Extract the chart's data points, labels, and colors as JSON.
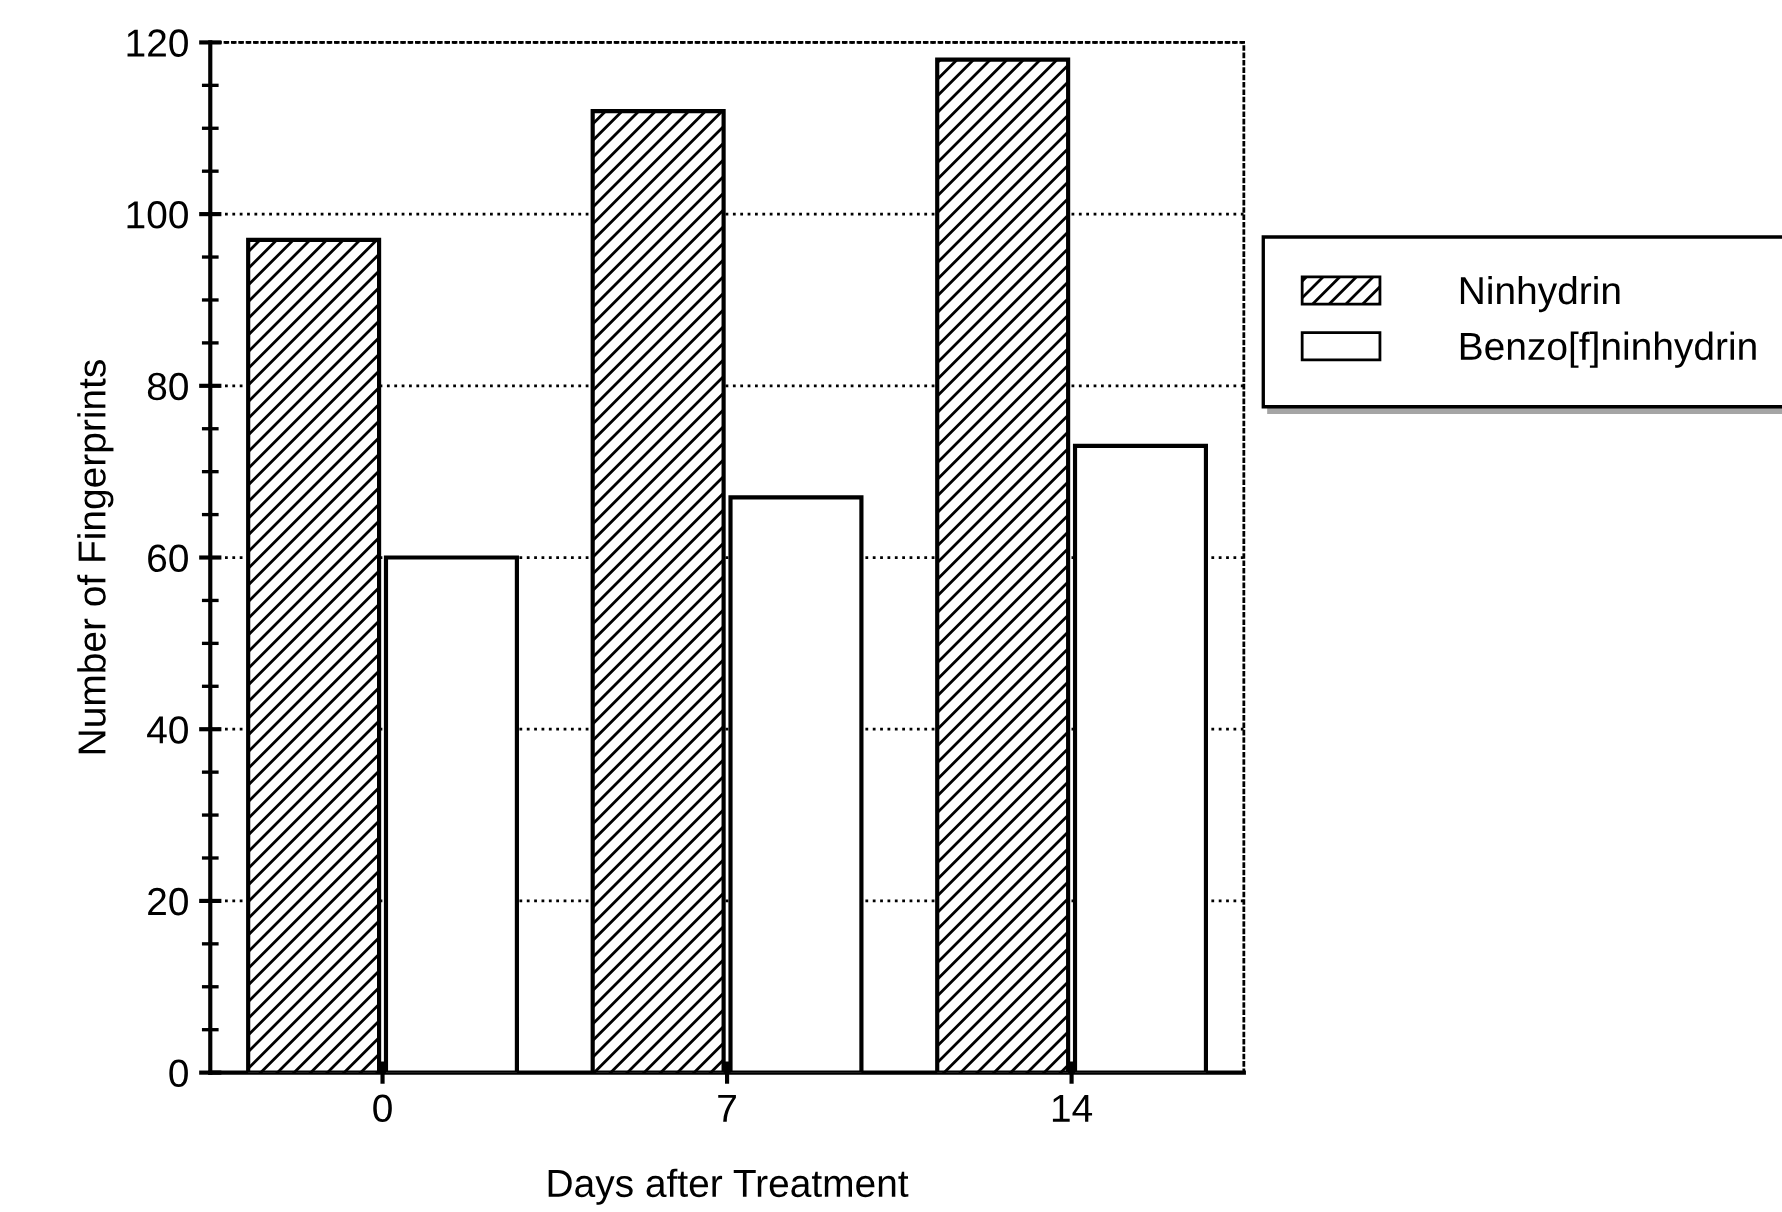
{
  "chart_data": {
    "type": "bar",
    "xlabel": "Days after Treatment",
    "ylabel": "Number of Fingerprints",
    "categories": [
      "0",
      "7",
      "14"
    ],
    "series": [
      {
        "name": "Ninhydrin",
        "color": "#000000",
        "values": [
          97,
          112,
          118
        ]
      },
      {
        "name": "Benzo[f]ninhydrin",
        "color": "#ffffff",
        "values": [
          60,
          67,
          73
        ]
      }
    ],
    "ylim": [
      0,
      120
    ],
    "yticks": [
      0,
      20,
      40,
      60,
      80,
      100,
      120
    ],
    "grid": "y",
    "legend": "right"
  }
}
